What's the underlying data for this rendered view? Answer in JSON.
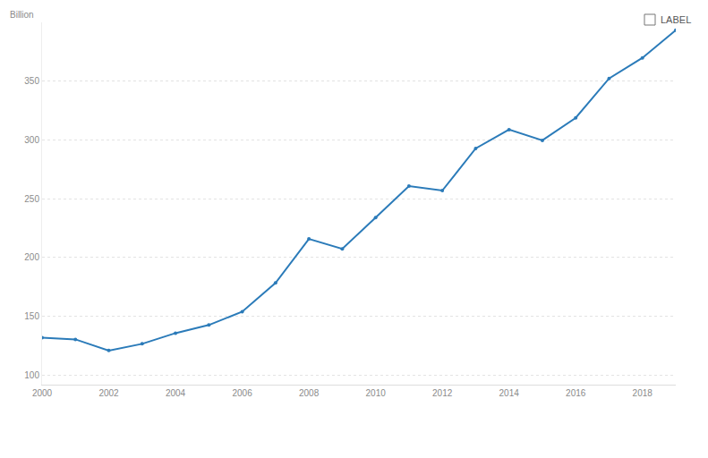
{
  "chart_data": {
    "type": "line",
    "y_label": "Billion",
    "annotation": "LABEL",
    "x": [
      2000,
      2001,
      2002,
      2003,
      2004,
      2005,
      2006,
      2007,
      2008,
      2009,
      2010,
      2011,
      2012,
      2013,
      2014,
      2015,
      2016,
      2017,
      2018,
      2019
    ],
    "values": [
      132,
      130.5,
      121,
      126.7,
      135.8,
      142.7,
      154,
      178.5,
      215.9,
      207.5,
      234,
      260.8,
      257,
      292.8,
      308.8,
      299.7,
      318.8,
      352.3,
      369.8,
      393.4
    ],
    "color": "#2b7bb9",
    "marker": "circle",
    "xlim": [
      2000,
      2019
    ],
    "xticks": [
      2000,
      2002,
      2004,
      2006,
      2008,
      2010,
      2012,
      2014,
      2016,
      2018
    ],
    "ylim": [
      92,
      400
    ],
    "yticks": [
      100,
      150,
      200,
      250,
      300,
      350
    ],
    "grid": true
  }
}
